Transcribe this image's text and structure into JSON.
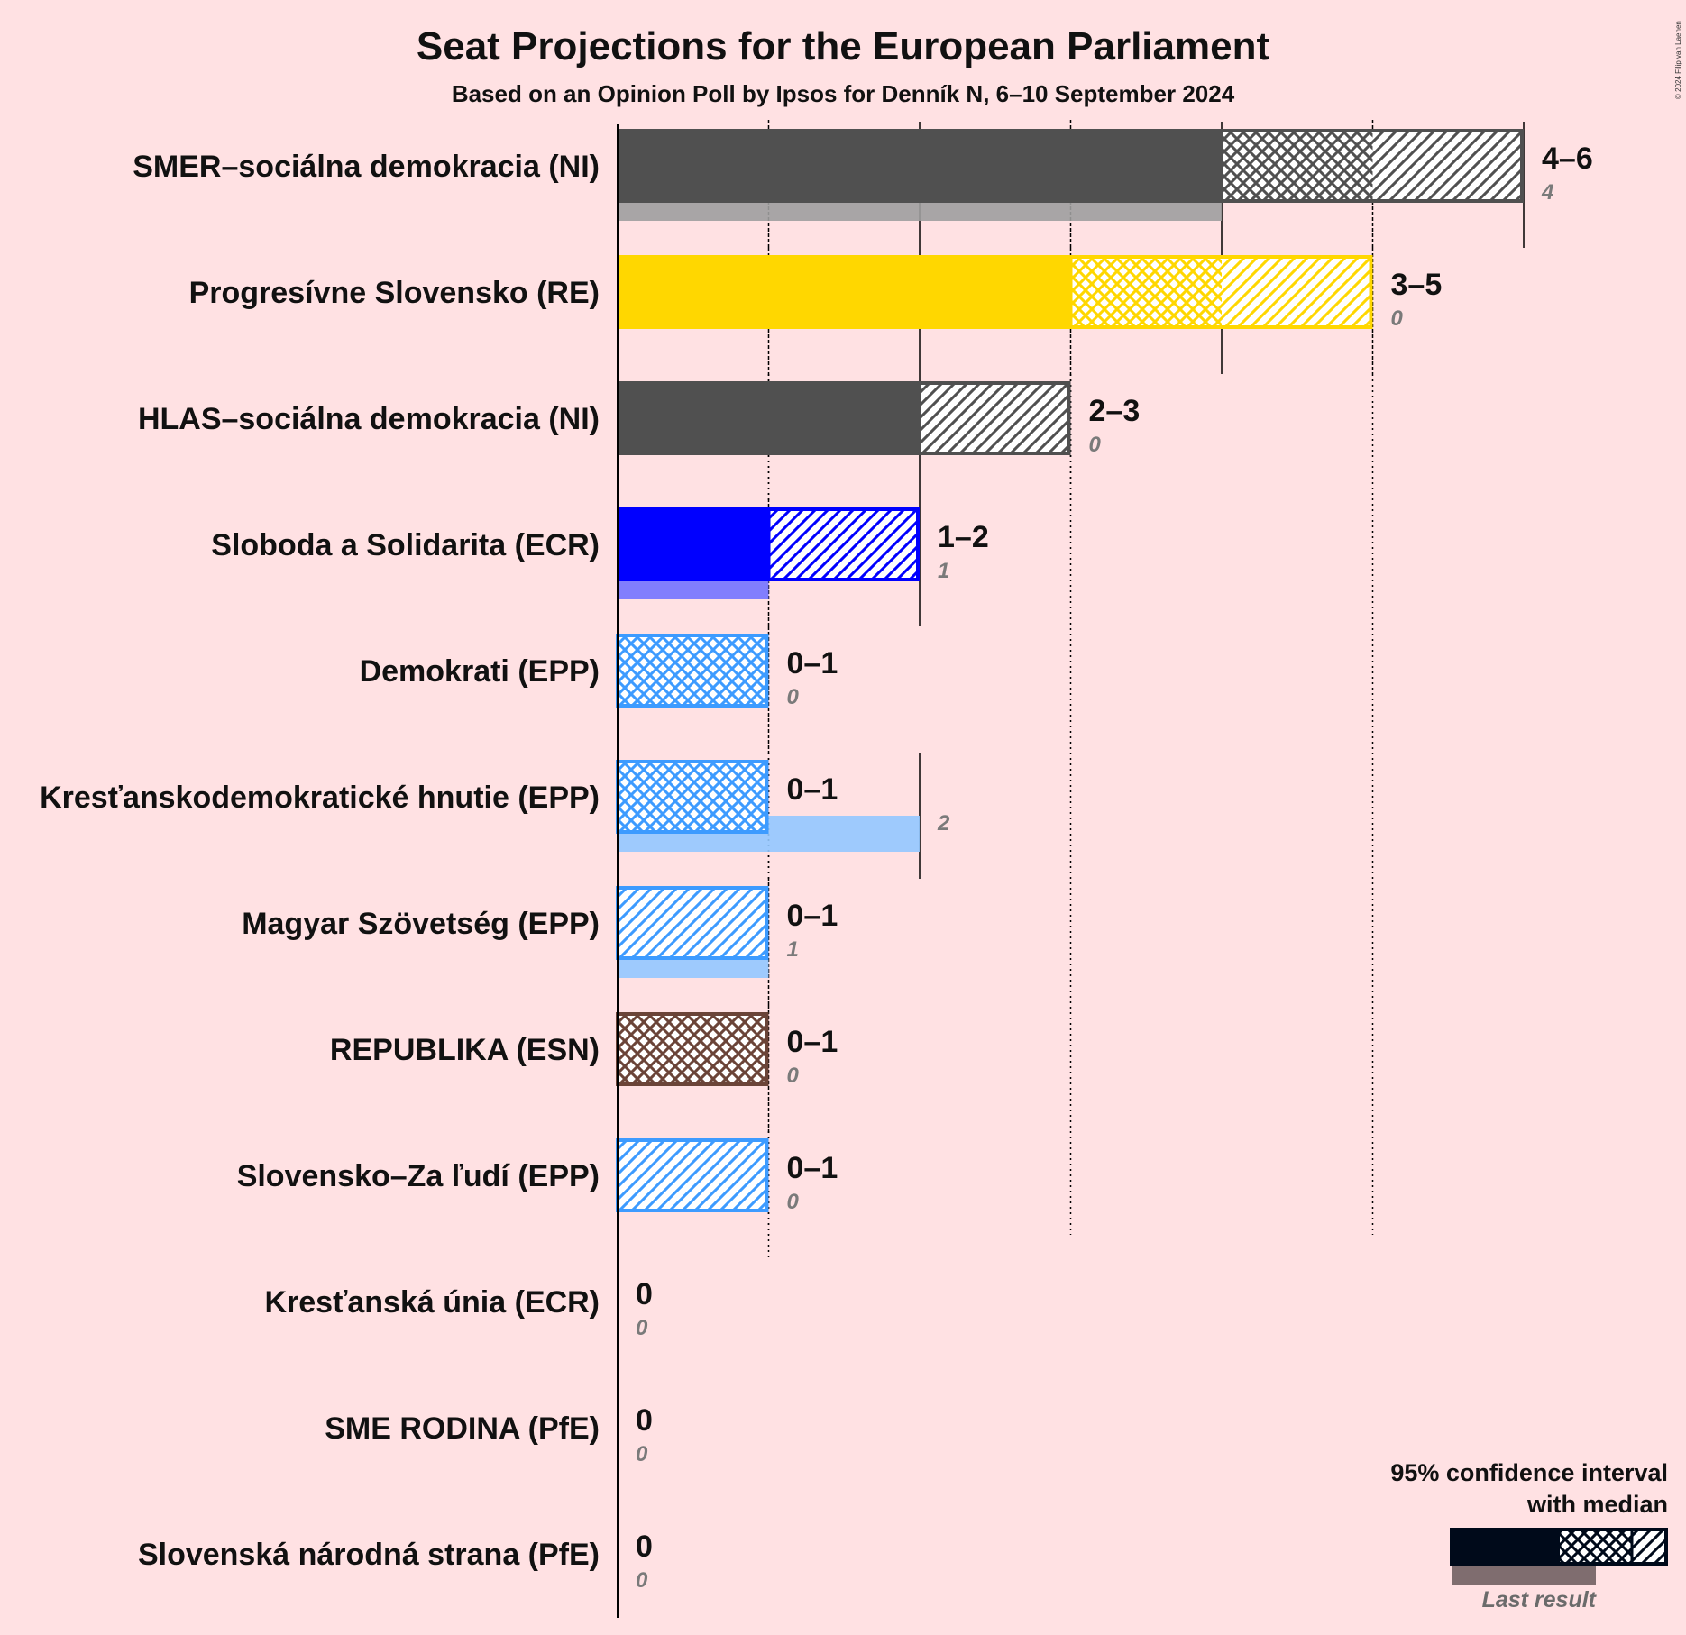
{
  "chart_data": {
    "type": "bar",
    "title": "Seat Projections for the European Parliament",
    "subtitle": "Based on an Opinion Poll by Ipsos for Denník N, 6–10 September 2024",
    "copyright": "© 2024 Filip van Laenen",
    "xlim": [
      0,
      6
    ],
    "parties": [
      {
        "name": "SMER–sociálna demokracia (NI)",
        "color": "#505050",
        "low": 4,
        "median": 5,
        "high": 6,
        "range_label": "4–6",
        "last_result": 4,
        "last_label": "4"
      },
      {
        "name": "Progresívne Slovensko (RE)",
        "color": "#ffd700",
        "low": 3,
        "median": 4,
        "high": 5,
        "range_label": "3–5",
        "last_result": 0,
        "last_label": "0"
      },
      {
        "name": "HLAS–sociálna demokracia (NI)",
        "color": "#505050",
        "low": 2,
        "median": 2,
        "high": 3,
        "range_label": "2–3",
        "last_result": 0,
        "last_label": "0"
      },
      {
        "name": "Sloboda a Solidarita (ECR)",
        "color": "#0000ff",
        "low": 1,
        "median": 1,
        "high": 2,
        "range_label": "1–2",
        "last_result": 1,
        "last_label": "1"
      },
      {
        "name": "Demokrati (EPP)",
        "color": "#3d9bff",
        "low": 0,
        "median": 1,
        "high": 1,
        "range_label": "0–1",
        "last_result": 0,
        "last_label": "0"
      },
      {
        "name": "Kresťanskodemokratické hnutie (EPP)",
        "color": "#3d9bff",
        "low": 0,
        "median": 1,
        "high": 1,
        "range_label": "0–1",
        "last_result": 2,
        "last_label": "2"
      },
      {
        "name": "Magyar Szövetség (EPP)",
        "color": "#3d9bff",
        "low": 0,
        "median": 0,
        "high": 1,
        "range_label": "0–1",
        "last_result": 1,
        "last_label": "1"
      },
      {
        "name": "REPUBLIKA (ESN)",
        "color": "#6b4438",
        "low": 0,
        "median": 1,
        "high": 1,
        "range_label": "0–1",
        "last_result": 0,
        "last_label": "0"
      },
      {
        "name": "Slovensko–Za ľudí (EPP)",
        "color": "#3d9bff",
        "low": 0,
        "median": 0,
        "high": 1,
        "range_label": "0–1",
        "last_result": 0,
        "last_label": "0"
      },
      {
        "name": "Kresťanská únia (ECR)",
        "color": "#0000ff",
        "low": 0,
        "median": 0,
        "high": 0,
        "range_label": "0",
        "last_result": 0,
        "last_label": "0"
      },
      {
        "name": "SME RODINA (PfE)",
        "color": "#505050",
        "low": 0,
        "median": 0,
        "high": 0,
        "range_label": "0",
        "last_result": 0,
        "last_label": "0"
      },
      {
        "name": "Slovenská národná strana (PfE)",
        "color": "#505050",
        "low": 0,
        "median": 0,
        "high": 0,
        "range_label": "0",
        "last_result": 0,
        "last_label": "0"
      }
    ],
    "legend": {
      "line1": "95% confidence interval",
      "line2": "with median",
      "last_result_label": "Last result",
      "color": "#000a1a"
    }
  }
}
